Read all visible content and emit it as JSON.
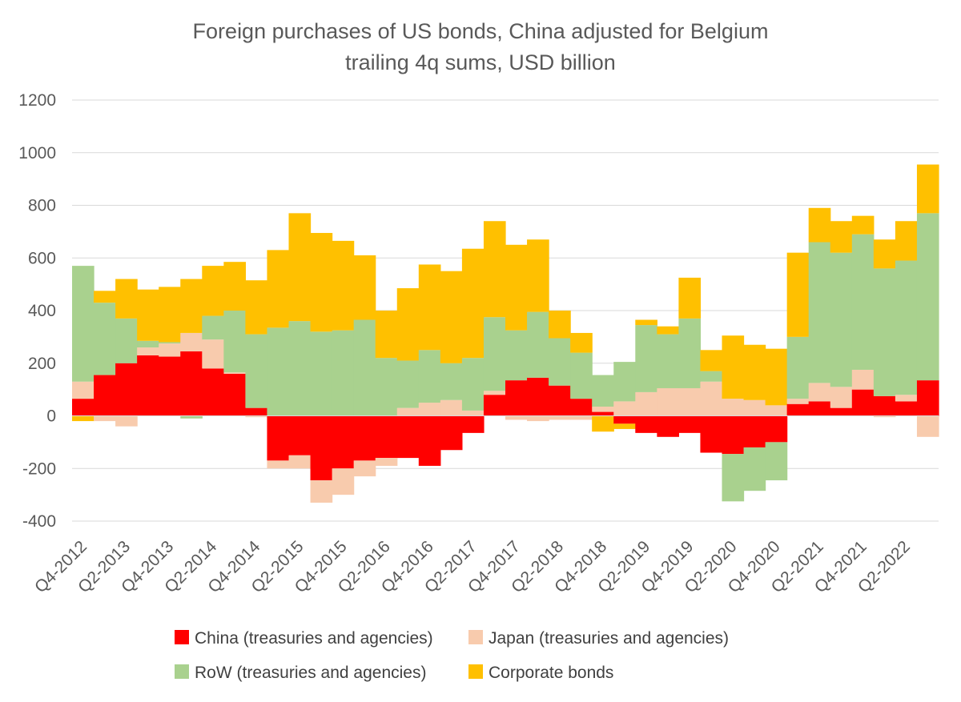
{
  "chart_data": {
    "type": "bar",
    "stacked": true,
    "title": "Foreign purchases of US bonds,  China adjusted for Belgium",
    "subtitle": "trailing 4q sums, USD billion",
    "xlabel": "",
    "ylabel": "",
    "ylim": [
      -400,
      1200
    ],
    "yticks": [
      -400,
      -200,
      0,
      200,
      400,
      600,
      800,
      1000,
      1200
    ],
    "grid": true,
    "legend_position": "bottom",
    "categories": [
      "Q4-2012",
      "Q1-2013",
      "Q2-2013",
      "Q3-2013",
      "Q4-2013",
      "Q1-2014",
      "Q2-2014",
      "Q3-2014",
      "Q4-2014",
      "Q1-2015",
      "Q2-2015",
      "Q3-2015",
      "Q4-2015",
      "Q1-2016",
      "Q2-2016",
      "Q3-2016",
      "Q4-2016",
      "Q1-2017",
      "Q2-2017",
      "Q3-2017",
      "Q4-2017",
      "Q1-2018",
      "Q2-2018",
      "Q3-2018",
      "Q4-2018",
      "Q1-2019",
      "Q2-2019",
      "Q3-2019",
      "Q4-2019",
      "Q1-2020",
      "Q2-2020",
      "Q3-2020",
      "Q4-2020",
      "Q1-2021",
      "Q2-2021",
      "Q3-2021",
      "Q4-2021",
      "Q1-2022",
      "Q2-2022",
      "Q3-2022"
    ],
    "tick_labels": [
      "Q4-2012",
      "Q2-2013",
      "Q4-2013",
      "Q2-2014",
      "Q4-2014",
      "Q2-2015",
      "Q4-2015",
      "Q2-2016",
      "Q4-2016",
      "Q2-2017",
      "Q4-2017",
      "Q2-2018",
      "Q4-2018",
      "Q2-2019",
      "Q4-2019",
      "Q2-2020",
      "Q4-2020",
      "Q2-2021",
      "Q4-2021",
      "Q2-2022"
    ],
    "series": [
      {
        "name": "China (treasuries and agencies)",
        "color": "#ff0000",
        "values": [
          65,
          155,
          200,
          230,
          225,
          245,
          180,
          160,
          30,
          -170,
          -150,
          -245,
          -200,
          -170,
          -160,
          -160,
          -190,
          -130,
          -65,
          80,
          135,
          145,
          115,
          65,
          15,
          -30,
          -65,
          -80,
          -65,
          -140,
          -145,
          -120,
          -100,
          45,
          55,
          30,
          100,
          75,
          55,
          135
        ]
      },
      {
        "name": "Japan (treasuries and agencies)",
        "color": "#f8cbad",
        "values": [
          65,
          -20,
          -40,
          30,
          50,
          70,
          110,
          5,
          -5,
          -30,
          -50,
          -85,
          -100,
          -60,
          -30,
          30,
          50,
          60,
          20,
          15,
          -15,
          -20,
          -15,
          -15,
          20,
          55,
          90,
          105,
          105,
          130,
          65,
          60,
          40,
          20,
          70,
          80,
          75,
          -5,
          25,
          -80
        ]
      },
      {
        "name": "RoW (treasuries and agencies)",
        "color": "#a9d18e",
        "values": [
          440,
          275,
          170,
          25,
          5,
          -10,
          90,
          235,
          280,
          335,
          360,
          320,
          325,
          365,
          220,
          180,
          200,
          140,
          200,
          280,
          190,
          250,
          180,
          175,
          120,
          150,
          255,
          205,
          265,
          40,
          -180,
          -165,
          -145,
          235,
          535,
          510,
          515,
          485,
          510,
          635
        ]
      },
      {
        "name": "Corporate bonds",
        "color": "#ffc000",
        "values": [
          -20,
          45,
          150,
          195,
          210,
          205,
          190,
          185,
          205,
          295,
          410,
          375,
          340,
          245,
          180,
          275,
          325,
          350,
          415,
          365,
          325,
          275,
          105,
          75,
          -60,
          -20,
          20,
          30,
          155,
          80,
          240,
          210,
          215,
          320,
          130,
          120,
          70,
          110,
          150,
          185
        ]
      }
    ]
  }
}
